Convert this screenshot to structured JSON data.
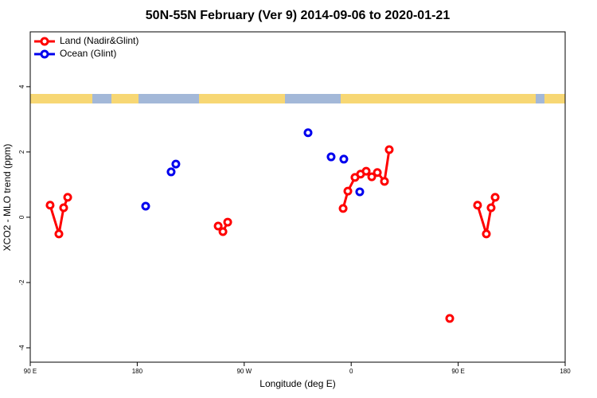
{
  "chart_data": {
    "type": "line",
    "title": "50N-55N February (Ver 9)   2014-09-06 to 2020-01-21",
    "x_label": "Longitude (deg E)",
    "y_label": "XCO2 - MLO trend (ppm)",
    "xlim": [
      -270,
      180
    ],
    "xticks": [
      {
        "value": -270,
        "label": "90 E"
      },
      {
        "value": -180,
        "label": "180"
      },
      {
        "value": -90,
        "label": "90 W"
      },
      0,
      {
        "value": 90,
        "label": "90 E"
      },
      180
    ],
    "ylim": [
      -4.44,
      5.68
    ],
    "yticks": [
      -4,
      -2,
      0,
      2,
      4
    ],
    "legend": "top-left",
    "series": [
      {
        "name": "Land (Nadir&Glint)",
        "color": "#ff0000",
        "line": true,
        "x": [
          -253.3,
          -245.9,
          -241.9,
          -238.5,
          null,
          -111.9,
          -107.9,
          -103.9,
          null,
          -6.8,
          -2.8,
          3.2,
          7.9,
          12.6,
          17.3,
          22.0,
          28.0,
          32.0,
          null,
          82.9,
          null,
          106.3,
          113.7,
          117.7,
          121.1
        ],
        "values": [
          0.37,
          -0.51,
          0.29,
          0.61,
          null,
          -0.27,
          -0.44,
          -0.15,
          null,
          0.27,
          0.8,
          1.22,
          1.32,
          1.41,
          1.24,
          1.37,
          1.1,
          2.07,
          null,
          -3.1,
          null,
          0.37,
          -0.51,
          0.29,
          0.61
        ]
      },
      {
        "name": "Ocean (Glint)",
        "color": "#0000ee",
        "line": false,
        "x": [
          -172.9,
          -151.5,
          -147.5,
          -36.3,
          -16.9,
          -6.2,
          7.2
        ],
        "values": [
          0.34,
          1.39,
          1.63,
          2.59,
          1.85,
          1.78,
          0.78
        ]
      }
    ]
  }
}
